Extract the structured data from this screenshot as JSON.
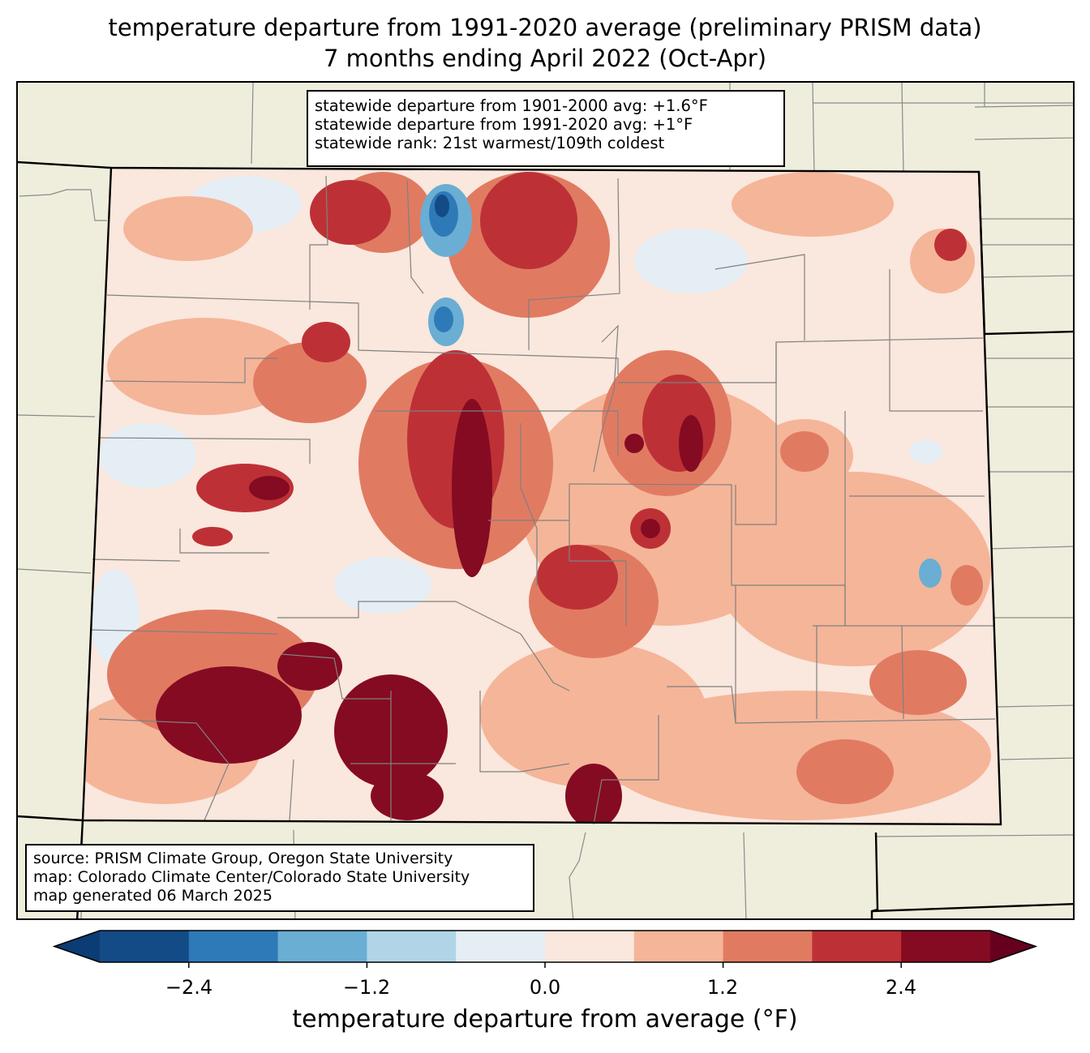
{
  "title": {
    "line1": "temperature departure from 1991-2020 average (preliminary PRISM data)",
    "line2": "7 months ending April 2022 (Oct-Apr)"
  },
  "stats": {
    "line1": "statewide departure from 1901-2000 avg: +1.6°F",
    "line2": "statewide departure from 1991-2020 avg: +1°F",
    "line3": "statewide rank: 21st warmest/109th coldest"
  },
  "source": {
    "line1": "source: PRISM Climate Group, Oregon State University",
    "line2": "map: Colorado Climate Center/Colorado State University",
    "line3": "map generated 06 March 2025"
  },
  "colorbar": {
    "label": "temperature departure from average (°F)",
    "ticks": [
      "−2.4",
      "−1.2",
      "0.0",
      "1.2",
      "2.4"
    ],
    "colors": [
      "#0b3c73",
      "#134b87",
      "#2e7ab8",
      "#6aaed3",
      "#b1d5e7",
      "#e5eef5",
      "#fae7dd",
      "#f5b599",
      "#e07b62",
      "#bd3136",
      "#850b22",
      "#67001f"
    ],
    "boundaries": [
      -3.0,
      -2.4,
      -1.8,
      -1.2,
      -0.6,
      0.0,
      0.6,
      1.2,
      1.8,
      2.4,
      3.0
    ]
  },
  "map": {
    "land_color": "#efeedd",
    "state_fill": "#fae7dd"
  }
}
